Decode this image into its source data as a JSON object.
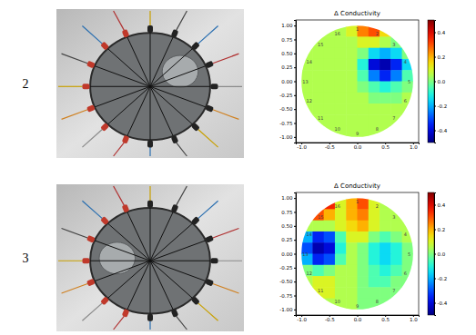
{
  "row_labels": [
    "2",
    "3"
  ],
  "chart_data": [
    {
      "type": "heatmap",
      "title": "Δ Conductivity",
      "annotations": [
        "1",
        "2",
        "3",
        "4",
        "5",
        "6",
        "7",
        "8",
        "9",
        "10",
        "11",
        "12",
        "13",
        "14",
        "15",
        "16"
      ],
      "xlim": [
        -1.1,
        1.1
      ],
      "ylim": [
        -1.1,
        1.1
      ],
      "xticks": [
        {
          "value": -1,
          "label": "-1.0"
        },
        {
          "value": -0.5,
          "label": "-0.5"
        },
        {
          "value": 0,
          "label": "0.0"
        },
        {
          "value": 0.5,
          "label": "0.5"
        },
        {
          "value": 1,
          "label": "1.0"
        }
      ],
      "yticks": [
        {
          "value": -1,
          "label": "-1.00"
        },
        {
          "value": -0.75,
          "label": "-0.75"
        },
        {
          "value": -0.5,
          "label": "-0.50"
        },
        {
          "value": -0.25,
          "label": "-0.25"
        },
        {
          "value": 0,
          "label": "0.00"
        },
        {
          "value": 0.25,
          "label": "0.25"
        },
        {
          "value": 0.5,
          "label": "0.50"
        },
        {
          "value": 0.75,
          "label": "0.75"
        },
        {
          "value": 1,
          "label": "1.00"
        }
      ],
      "x": [
        -0.9,
        -0.7,
        -0.5,
        -0.3,
        -0.1,
        0.1,
        0.3,
        0.5,
        0.7,
        0.9
      ],
      "y": [
        0.9,
        0.7,
        0.5,
        0.3,
        0.1,
        -0.1,
        -0.3,
        -0.5,
        -0.7,
        -0.9
      ],
      "cells": [
        [
          null,
          null,
          0.05,
          0.05,
          0.1,
          0.25,
          0.3,
          0.15,
          null,
          null
        ],
        [
          null,
          0.05,
          0.05,
          0.05,
          0.05,
          0.1,
          0.1,
          0.05,
          0.0,
          null
        ],
        [
          0.05,
          0.05,
          0.05,
          0.05,
          0.05,
          0.0,
          -0.15,
          -0.2,
          -0.15,
          0.0
        ],
        [
          0.05,
          0.05,
          0.05,
          0.05,
          0.05,
          -0.1,
          -0.4,
          -0.45,
          -0.35,
          -0.15
        ],
        [
          0.05,
          0.05,
          0.05,
          0.05,
          0.05,
          -0.05,
          -0.25,
          -0.35,
          -0.25,
          -0.05
        ],
        [
          0.05,
          0.05,
          0.05,
          0.05,
          0.05,
          0.0,
          -0.05,
          -0.1,
          -0.05,
          0.0
        ],
        [
          0.05,
          0.05,
          0.05,
          0.05,
          0.05,
          0.05,
          0.0,
          0.0,
          0.0,
          0.05
        ],
        [
          0.05,
          0.05,
          0.05,
          0.05,
          0.05,
          0.05,
          0.05,
          0.05,
          0.05,
          0.05
        ],
        [
          null,
          0.05,
          0.05,
          0.05,
          0.05,
          0.05,
          0.05,
          0.05,
          0.05,
          null
        ],
        [
          null,
          null,
          0.05,
          0.05,
          0.05,
          0.05,
          0.05,
          0.05,
          null,
          null
        ]
      ],
      "colorbar_lim": [
        -0.5,
        0.5
      ],
      "colorbar_ticks": [
        -0.4,
        -0.2,
        {
          "value": 0,
          "label": "0.0"
        },
        0.2,
        0.4
      ]
    },
    {
      "type": "heatmap",
      "title": "Δ Conductivity",
      "annotations": [
        "1",
        "2",
        "3",
        "4",
        "5",
        "6",
        "7",
        "8",
        "9",
        "10",
        "11",
        "12",
        "13",
        "14",
        "15",
        "16"
      ],
      "xlim": [
        -1.1,
        1.1
      ],
      "ylim": [
        -1.1,
        1.1
      ],
      "xticks": [
        {
          "value": -1,
          "label": "-1.0"
        },
        {
          "value": -0.5,
          "label": "-0.5"
        },
        {
          "value": 0,
          "label": "0.0"
        },
        {
          "value": 0.5,
          "label": "0.5"
        },
        {
          "value": 1,
          "label": "1.0"
        }
      ],
      "yticks": [
        {
          "value": -1,
          "label": "-1.00"
        },
        {
          "value": -0.75,
          "label": "-0.75"
        },
        {
          "value": -0.5,
          "label": "-0.50"
        },
        {
          "value": -0.25,
          "label": "-0.25"
        },
        {
          "value": 0,
          "label": "0.00"
        },
        {
          "value": 0.25,
          "label": "0.25"
        },
        {
          "value": 0.5,
          "label": "0.50"
        },
        {
          "value": 0.75,
          "label": "0.75"
        },
        {
          "value": 1,
          "label": "1.00"
        }
      ],
      "x": [
        -0.9,
        -0.7,
        -0.5,
        -0.3,
        -0.1,
        0.1,
        0.3,
        0.5,
        0.7,
        0.9
      ],
      "y": [
        0.9,
        0.7,
        0.5,
        0.3,
        0.1,
        -0.1,
        -0.3,
        -0.5,
        -0.7,
        -0.9
      ],
      "cells": [
        [
          null,
          null,
          0.35,
          0.1,
          0.2,
          0.3,
          0.1,
          0.05,
          null,
          null
        ],
        [
          null,
          0.3,
          0.2,
          0.1,
          0.2,
          0.25,
          0.1,
          0.05,
          0.05,
          null
        ],
        [
          0.05,
          0.05,
          0.05,
          0.1,
          0.15,
          0.2,
          0.1,
          0.05,
          0.05,
          0.05
        ],
        [
          -0.2,
          -0.35,
          -0.3,
          -0.05,
          0.1,
          0.1,
          0.0,
          -0.05,
          0.0,
          0.05
        ],
        [
          -0.3,
          -0.45,
          -0.4,
          -0.1,
          0.05,
          0.0,
          -0.1,
          -0.15,
          -0.1,
          0.0
        ],
        [
          -0.2,
          -0.35,
          -0.3,
          -0.05,
          0.05,
          0.0,
          -0.1,
          -0.15,
          -0.1,
          0.0
        ],
        [
          0.0,
          -0.05,
          0.0,
          0.05,
          0.05,
          0.0,
          -0.05,
          -0.1,
          -0.05,
          0.0
        ],
        [
          0.05,
          0.1,
          0.1,
          0.05,
          0.05,
          0.0,
          -0.05,
          -0.05,
          0.0,
          0.0
        ],
        [
          null,
          0.1,
          0.1,
          0.05,
          0.05,
          0.0,
          0.0,
          0.0,
          0.0,
          null
        ],
        [
          null,
          null,
          0.05,
          0.05,
          0.05,
          0.0,
          0.0,
          0.0,
          null,
          null
        ]
      ],
      "colorbar_lim": [
        -0.5,
        0.5
      ],
      "colorbar_ticks": [
        -0.4,
        -0.2,
        {
          "value": 0,
          "label": "0.0"
        },
        0.2,
        0.4
      ]
    }
  ]
}
